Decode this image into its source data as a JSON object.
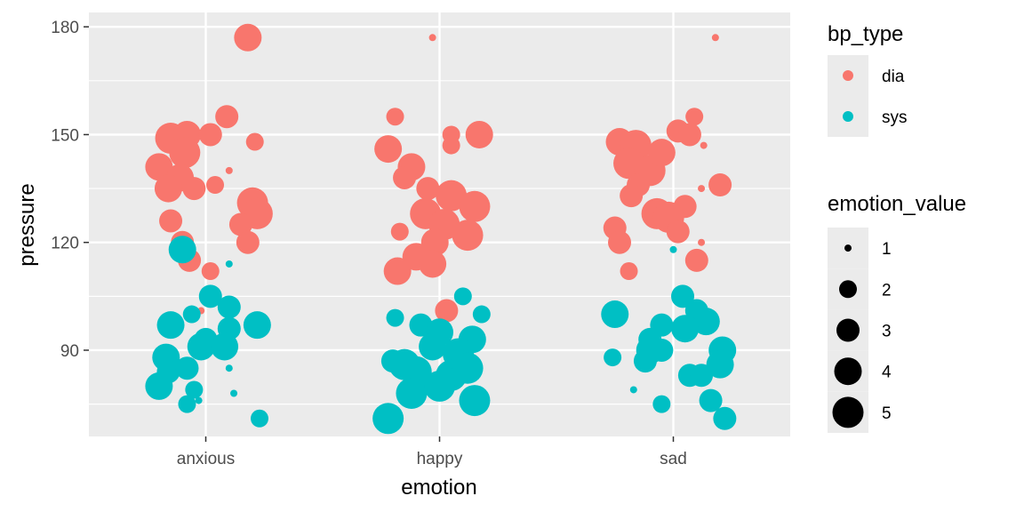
{
  "chart_data": {
    "type": "scatter",
    "xlabel": "emotion",
    "ylabel": "pressure",
    "categories": [
      "anxious",
      "happy",
      "sad"
    ],
    "ylim": [
      66,
      184
    ],
    "yticks": [
      90,
      120,
      150,
      180
    ],
    "grid": true,
    "jitter": "points spread horizontally within each category",
    "legend_position": "right",
    "color_legend": {
      "title": "bp_type",
      "entries": [
        {
          "label": "dia",
          "color": "#F8766D"
        },
        {
          "label": "sys",
          "color": "#00BFC4"
        }
      ]
    },
    "size_legend": {
      "title": "emotion_value",
      "entries": [
        {
          "label": "1",
          "value": 1
        },
        {
          "label": "2",
          "value": 2
        },
        {
          "label": "3",
          "value": 3
        },
        {
          "label": "4",
          "value": 4
        },
        {
          "label": "5",
          "value": 5
        }
      ]
    },
    "series": [
      {
        "name": "dia",
        "color": "#F8766D",
        "points": [
          {
            "x": "anxious",
            "dx": 0.18,
            "y": 177,
            "size": 4
          },
          {
            "x": "anxious",
            "dx": -0.15,
            "y": 149,
            "size": 5
          },
          {
            "x": "anxious",
            "dx": -0.08,
            "y": 150,
            "size": 4
          },
          {
            "x": "anxious",
            "dx": 0.02,
            "y": 150,
            "size": 3
          },
          {
            "x": "anxious",
            "dx": 0.09,
            "y": 155,
            "size": 3
          },
          {
            "x": "anxious",
            "dx": 0.21,
            "y": 148,
            "size": 2
          },
          {
            "x": "anxious",
            "dx": -0.2,
            "y": 141,
            "size": 4
          },
          {
            "x": "anxious",
            "dx": -0.09,
            "y": 145,
            "size": 5
          },
          {
            "x": "anxious",
            "dx": -0.11,
            "y": 138,
            "size": 4
          },
          {
            "x": "anxious",
            "dx": -0.16,
            "y": 135,
            "size": 4
          },
          {
            "x": "anxious",
            "dx": -0.05,
            "y": 135,
            "size": 3
          },
          {
            "x": "anxious",
            "dx": 0.04,
            "y": 136,
            "size": 2
          },
          {
            "x": "anxious",
            "dx": 0.1,
            "y": 140,
            "size": 1
          },
          {
            "x": "anxious",
            "dx": 0.2,
            "y": 131,
            "size": 5
          },
          {
            "x": "anxious",
            "dx": 0.22,
            "y": 128,
            "size": 5
          },
          {
            "x": "anxious",
            "dx": 0.15,
            "y": 125,
            "size": 3
          },
          {
            "x": "anxious",
            "dx": 0.18,
            "y": 120,
            "size": 3
          },
          {
            "x": "anxious",
            "dx": -0.15,
            "y": 126,
            "size": 3
          },
          {
            "x": "anxious",
            "dx": -0.1,
            "y": 120,
            "size": 3
          },
          {
            "x": "anxious",
            "dx": -0.07,
            "y": 115,
            "size": 3
          },
          {
            "x": "anxious",
            "dx": 0.02,
            "y": 112,
            "size": 2
          },
          {
            "x": "anxious",
            "dx": -0.02,
            "y": 101,
            "size": 1
          },
          {
            "x": "happy",
            "dx": -0.03,
            "y": 177,
            "size": 1
          },
          {
            "x": "happy",
            "dx": -0.19,
            "y": 155,
            "size": 2
          },
          {
            "x": "happy",
            "dx": 0.05,
            "y": 150,
            "size": 2
          },
          {
            "x": "happy",
            "dx": 0.05,
            "y": 147,
            "size": 2
          },
          {
            "x": "happy",
            "dx": 0.17,
            "y": 150,
            "size": 4
          },
          {
            "x": "happy",
            "dx": -0.22,
            "y": 146,
            "size": 4
          },
          {
            "x": "happy",
            "dx": -0.12,
            "y": 141,
            "size": 4
          },
          {
            "x": "happy",
            "dx": -0.15,
            "y": 138,
            "size": 3
          },
          {
            "x": "happy",
            "dx": -0.05,
            "y": 135,
            "size": 3
          },
          {
            "x": "happy",
            "dx": 0.05,
            "y": 133,
            "size": 5
          },
          {
            "x": "happy",
            "dx": 0.15,
            "y": 130,
            "size": 5
          },
          {
            "x": "happy",
            "dx": -0.06,
            "y": 128,
            "size": 5
          },
          {
            "x": "happy",
            "dx": 0.02,
            "y": 125,
            "size": 5
          },
          {
            "x": "happy",
            "dx": 0.12,
            "y": 122,
            "size": 5
          },
          {
            "x": "happy",
            "dx": -0.17,
            "y": 123,
            "size": 2
          },
          {
            "x": "happy",
            "dx": -0.02,
            "y": 120,
            "size": 4
          },
          {
            "x": "happy",
            "dx": -0.1,
            "y": 116,
            "size": 4
          },
          {
            "x": "happy",
            "dx": -0.03,
            "y": 114,
            "size": 4
          },
          {
            "x": "happy",
            "dx": -0.18,
            "y": 112,
            "size": 4
          },
          {
            "x": "happy",
            "dx": 0.03,
            "y": 101,
            "size": 3
          }
        ]
      },
      {
        "name": "sys",
        "color": "#00BFC4",
        "points": [
          {
            "x": "anxious",
            "dx": -0.1,
            "y": 118,
            "size": 4
          },
          {
            "x": "anxious",
            "dx": 0.1,
            "y": 114,
            "size": 1
          },
          {
            "x": "anxious",
            "dx": 0.02,
            "y": 105,
            "size": 3
          },
          {
            "x": "anxious",
            "dx": -0.06,
            "y": 100,
            "size": 2
          },
          {
            "x": "anxious",
            "dx": 0.1,
            "y": 102,
            "size": 3
          },
          {
            "x": "anxious",
            "dx": -0.15,
            "y": 97,
            "size": 4
          },
          {
            "x": "anxious",
            "dx": 0.22,
            "y": 97,
            "size": 4
          },
          {
            "x": "anxious",
            "dx": 0.1,
            "y": 96,
            "size": 3
          },
          {
            "x": "anxious",
            "dx": 0.0,
            "y": 93,
            "size": 3
          },
          {
            "x": "anxious",
            "dx": -0.02,
            "y": 91,
            "size": 4
          },
          {
            "x": "anxious",
            "dx": 0.08,
            "y": 91,
            "size": 4
          },
          {
            "x": "anxious",
            "dx": -0.17,
            "y": 88,
            "size": 4
          },
          {
            "x": "anxious",
            "dx": -0.16,
            "y": 84,
            "size": 3
          },
          {
            "x": "anxious",
            "dx": -0.08,
            "y": 85,
            "size": 3
          },
          {
            "x": "anxious",
            "dx": 0.1,
            "y": 85,
            "size": 1
          },
          {
            "x": "anxious",
            "dx": -0.2,
            "y": 80,
            "size": 4
          },
          {
            "x": "anxious",
            "dx": -0.05,
            "y": 79,
            "size": 2
          },
          {
            "x": "anxious",
            "dx": 0.12,
            "y": 78,
            "size": 1
          },
          {
            "x": "anxious",
            "dx": -0.08,
            "y": 75,
            "size": 2
          },
          {
            "x": "anxious",
            "dx": -0.03,
            "y": 76,
            "size": 1
          },
          {
            "x": "anxious",
            "dx": 0.23,
            "y": 71,
            "size": 2
          },
          {
            "x": "happy",
            "dx": -0.19,
            "y": 99,
            "size": 2
          },
          {
            "x": "happy",
            "dx": 0.1,
            "y": 105,
            "size": 2
          },
          {
            "x": "happy",
            "dx": 0.18,
            "y": 100,
            "size": 2
          },
          {
            "x": "happy",
            "dx": -0.08,
            "y": 97,
            "size": 3
          },
          {
            "x": "happy",
            "dx": 0.0,
            "y": 95,
            "size": 4
          },
          {
            "x": "happy",
            "dx": 0.14,
            "y": 93,
            "size": 4
          },
          {
            "x": "happy",
            "dx": -0.03,
            "y": 91,
            "size": 4
          },
          {
            "x": "happy",
            "dx": 0.08,
            "y": 89,
            "size": 5
          },
          {
            "x": "happy",
            "dx": -0.2,
            "y": 87,
            "size": 3
          },
          {
            "x": "happy",
            "dx": -0.15,
            "y": 86,
            "size": 5
          },
          {
            "x": "happy",
            "dx": -0.1,
            "y": 84,
            "size": 5
          },
          {
            "x": "happy",
            "dx": 0.05,
            "y": 83,
            "size": 5
          },
          {
            "x": "happy",
            "dx": 0.12,
            "y": 85,
            "size": 5
          },
          {
            "x": "happy",
            "dx": -0.12,
            "y": 78,
            "size": 5
          },
          {
            "x": "happy",
            "dx": 0.0,
            "y": 80,
            "size": 5
          },
          {
            "x": "happy",
            "dx": 0.15,
            "y": 76,
            "size": 5
          },
          {
            "x": "happy",
            "dx": -0.22,
            "y": 71,
            "size": 5
          }
        ]
      },
      {
        "name": "dia",
        "color": "#F8766D",
        "points": [
          {
            "x": "sad",
            "dx": 0.09,
            "y": 155,
            "size": 2
          },
          {
            "x": "sad",
            "dx": 0.02,
            "y": 151,
            "size": 3
          },
          {
            "x": "sad",
            "dx": 0.07,
            "y": 150,
            "size": 3
          },
          {
            "x": "sad",
            "dx": -0.23,
            "y": 148,
            "size": 4
          },
          {
            "x": "sad",
            "dx": -0.16,
            "y": 147,
            "size": 5
          },
          {
            "x": "sad",
            "dx": -0.19,
            "y": 142,
            "size": 5
          },
          {
            "x": "sad",
            "dx": -0.1,
            "y": 140,
            "size": 5
          },
          {
            "x": "sad",
            "dx": -0.05,
            "y": 145,
            "size": 4
          },
          {
            "x": "sad",
            "dx": 0.13,
            "y": 147,
            "size": 1
          },
          {
            "x": "sad",
            "dx": -0.15,
            "y": 136,
            "size": 3
          },
          {
            "x": "sad",
            "dx": 0.2,
            "y": 136,
            "size": 3
          },
          {
            "x": "sad",
            "dx": -0.18,
            "y": 133,
            "size": 3
          },
          {
            "x": "sad",
            "dx": 0.12,
            "y": 135,
            "size": 1
          },
          {
            "x": "sad",
            "dx": 0.05,
            "y": 130,
            "size": 3
          },
          {
            "x": "sad",
            "dx": -0.07,
            "y": 128,
            "size": 5
          },
          {
            "x": "sad",
            "dx": -0.02,
            "y": 127,
            "size": 5
          },
          {
            "x": "sad",
            "dx": 0.02,
            "y": 123,
            "size": 3
          },
          {
            "x": "sad",
            "dx": -0.25,
            "y": 124,
            "size": 3
          },
          {
            "x": "sad",
            "dx": -0.23,
            "y": 120,
            "size": 3
          },
          {
            "x": "sad",
            "dx": 0.12,
            "y": 120,
            "size": 1
          },
          {
            "x": "sad",
            "dx": 0.1,
            "y": 115,
            "size": 3
          },
          {
            "x": "sad",
            "dx": -0.19,
            "y": 112,
            "size": 2
          },
          {
            "x": "sad",
            "dx": 0.18,
            "y": 177,
            "size": 1
          },
          {
            "x": "sad",
            "dx": -0.24,
            "y": 101,
            "size": 1
          }
        ]
      },
      {
        "name": "sys",
        "color": "#00BFC4",
        "points": [
          {
            "x": "sad",
            "dx": -0.25,
            "y": 100,
            "size": 4
          },
          {
            "x": "sad",
            "dx": 0.0,
            "y": 118,
            "size": 1
          },
          {
            "x": "sad",
            "dx": 0.04,
            "y": 105,
            "size": 3
          },
          {
            "x": "sad",
            "dx": 0.1,
            "y": 101,
            "size": 3
          },
          {
            "x": "sad",
            "dx": -0.05,
            "y": 97,
            "size": 3
          },
          {
            "x": "sad",
            "dx": 0.14,
            "y": 98,
            "size": 4
          },
          {
            "x": "sad",
            "dx": -0.1,
            "y": 93,
            "size": 3
          },
          {
            "x": "sad",
            "dx": 0.05,
            "y": 96,
            "size": 4
          },
          {
            "x": "sad",
            "dx": 0.21,
            "y": 90,
            "size": 4
          },
          {
            "x": "sad",
            "dx": 0.2,
            "y": 86,
            "size": 4
          },
          {
            "x": "sad",
            "dx": -0.1,
            "y": 90,
            "size": 4
          },
          {
            "x": "sad",
            "dx": -0.05,
            "y": 90,
            "size": 3
          },
          {
            "x": "sad",
            "dx": -0.26,
            "y": 88,
            "size": 2
          },
          {
            "x": "sad",
            "dx": -0.12,
            "y": 87,
            "size": 3
          },
          {
            "x": "sad",
            "dx": 0.07,
            "y": 83,
            "size": 3
          },
          {
            "x": "sad",
            "dx": 0.12,
            "y": 83,
            "size": 3
          },
          {
            "x": "sad",
            "dx": -0.17,
            "y": 79,
            "size": 1
          },
          {
            "x": "sad",
            "dx": 0.16,
            "y": 76,
            "size": 3
          },
          {
            "x": "sad",
            "dx": -0.05,
            "y": 75,
            "size": 2
          },
          {
            "x": "sad",
            "dx": 0.22,
            "y": 71,
            "size": 3
          }
        ]
      }
    ]
  }
}
